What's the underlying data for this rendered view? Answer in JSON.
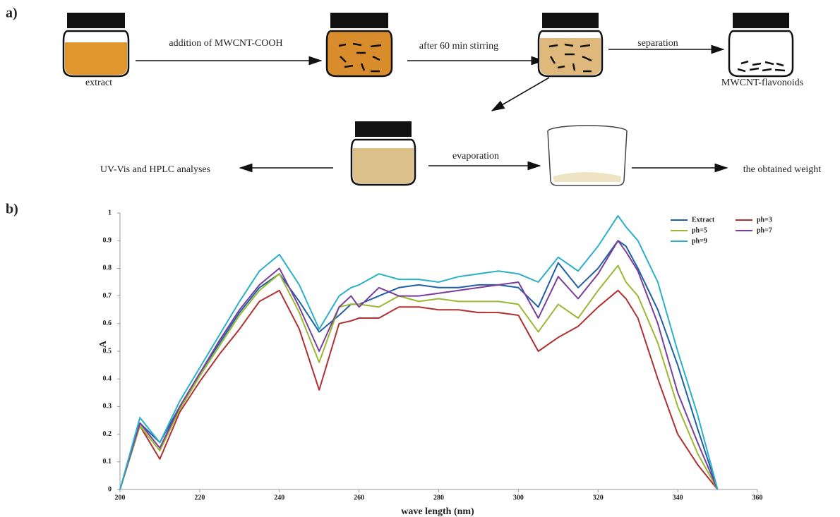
{
  "panels": [
    "a)",
    "b)"
  ],
  "diagram": {
    "labels": {
      "extract": "extract",
      "addition": "addition of MWCNT-COOH",
      "stirring": "after 60 min stirring",
      "separation": "separation",
      "product": "MWCNT-flavonoids",
      "analyses": "UV-Vis and HPLC analyses",
      "evaporation": "evaporation",
      "weight": "the obtained weight"
    }
  },
  "chart_data": {
    "type": "line",
    "x_label": "wave length (nm)",
    "y_label": "A",
    "x": [
      200,
      205,
      210,
      215,
      220,
      225,
      230,
      235,
      240,
      245,
      250,
      255,
      258,
      260,
      265,
      270,
      275,
      280,
      285,
      290,
      295,
      300,
      305,
      310,
      315,
      320,
      325,
      327,
      330,
      335,
      340,
      345,
      350
    ],
    "series": [
      {
        "name": "Extract",
        "color": "#1f5fa8",
        "values": [
          0,
          0.24,
          0.17,
          0.3,
          0.42,
          0.53,
          0.64,
          0.73,
          0.78,
          0.68,
          0.57,
          0.63,
          0.67,
          0.67,
          0.7,
          0.73,
          0.74,
          0.73,
          0.73,
          0.74,
          0.74,
          0.73,
          0.66,
          0.82,
          0.73,
          0.8,
          0.9,
          0.88,
          0.8,
          0.65,
          0.45,
          0.22,
          0
        ]
      },
      {
        "name": "ph=3",
        "color": "#b03030",
        "values": [
          0,
          0.23,
          0.11,
          0.28,
          0.39,
          0.49,
          0.58,
          0.68,
          0.72,
          0.58,
          0.36,
          0.6,
          0.61,
          0.62,
          0.62,
          0.66,
          0.66,
          0.65,
          0.65,
          0.64,
          0.64,
          0.63,
          0.5,
          0.55,
          0.59,
          0.66,
          0.72,
          0.69,
          0.62,
          0.4,
          0.2,
          0.09,
          0
        ]
      },
      {
        "name": "ph=5",
        "color": "#9ab832",
        "values": [
          0,
          0.23,
          0.14,
          0.29,
          0.41,
          0.52,
          0.63,
          0.72,
          0.78,
          0.64,
          0.46,
          0.66,
          0.67,
          0.67,
          0.66,
          0.7,
          0.68,
          0.69,
          0.68,
          0.68,
          0.68,
          0.67,
          0.57,
          0.67,
          0.62,
          0.72,
          0.81,
          0.75,
          0.7,
          0.53,
          0.3,
          0.13,
          0
        ]
      },
      {
        "name": "ph=7",
        "color": "#7a3d9a",
        "values": [
          0,
          0.24,
          0.15,
          0.3,
          0.42,
          0.54,
          0.65,
          0.74,
          0.8,
          0.66,
          0.5,
          0.66,
          0.7,
          0.66,
          0.73,
          0.7,
          0.7,
          0.71,
          0.72,
          0.73,
          0.74,
          0.75,
          0.62,
          0.77,
          0.69,
          0.78,
          0.9,
          0.86,
          0.79,
          0.6,
          0.35,
          0.17,
          0
        ]
      },
      {
        "name": "ph=9",
        "color": "#2ab0c8",
        "values": [
          0,
          0.26,
          0.17,
          0.32,
          0.44,
          0.56,
          0.68,
          0.79,
          0.85,
          0.74,
          0.58,
          0.7,
          0.73,
          0.74,
          0.78,
          0.76,
          0.76,
          0.75,
          0.77,
          0.78,
          0.79,
          0.78,
          0.75,
          0.84,
          0.79,
          0.88,
          0.99,
          0.95,
          0.9,
          0.75,
          0.5,
          0.27,
          0
        ]
      }
    ],
    "xlim": [
      200,
      360
    ],
    "xticks": [
      200,
      220,
      240,
      260,
      280,
      300,
      320,
      340,
      360
    ],
    "ylim": [
      0,
      1
    ],
    "yticks": [
      0,
      0.1,
      0.2,
      0.3,
      0.4,
      0.5,
      0.6,
      0.7,
      0.8,
      0.9,
      1
    ],
    "grid": false,
    "legend": "upper right"
  }
}
